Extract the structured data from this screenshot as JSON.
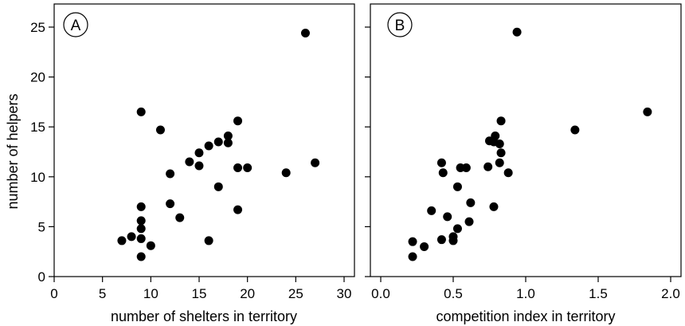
{
  "figure": {
    "shared_ylabel": "number of helpers"
  },
  "chart_data": [
    {
      "type": "scatter",
      "panel_label": "A",
      "title": "",
      "xlabel": "number of shelters in territory",
      "ylabel": "number of helpers",
      "xlim": [
        0,
        30
      ],
      "ylim": [
        0,
        25
      ],
      "xticks": [
        0,
        5,
        10,
        15,
        20,
        25,
        30
      ],
      "xtick_labels": [
        "0",
        "5",
        "10",
        "15",
        "20",
        "25",
        "30"
      ],
      "yticks": [
        0,
        5,
        10,
        15,
        20,
        25
      ],
      "ytick_labels": [
        "0",
        "5",
        "10",
        "15",
        "20",
        "25"
      ],
      "grid": false,
      "marker_color": "#000000",
      "points": [
        {
          "x": 7,
          "y": 3.6
        },
        {
          "x": 8,
          "y": 4.0
        },
        {
          "x": 9,
          "y": 2.0
        },
        {
          "x": 9,
          "y": 3.8
        },
        {
          "x": 9,
          "y": 4.8
        },
        {
          "x": 9,
          "y": 5.6
        },
        {
          "x": 9,
          "y": 7.0
        },
        {
          "x": 9,
          "y": 16.5
        },
        {
          "x": 10,
          "y": 3.1
        },
        {
          "x": 11,
          "y": 14.7
        },
        {
          "x": 12,
          "y": 7.3
        },
        {
          "x": 12,
          "y": 10.3
        },
        {
          "x": 13,
          "y": 5.9
        },
        {
          "x": 14,
          "y": 11.5
        },
        {
          "x": 15,
          "y": 11.1
        },
        {
          "x": 15,
          "y": 12.4
        },
        {
          "x": 16,
          "y": 3.6
        },
        {
          "x": 16,
          "y": 13.1
        },
        {
          "x": 17,
          "y": 9.0
        },
        {
          "x": 17,
          "y": 13.5
        },
        {
          "x": 18,
          "y": 13.4
        },
        {
          "x": 18,
          "y": 14.1
        },
        {
          "x": 19,
          "y": 6.7
        },
        {
          "x": 19,
          "y": 10.9
        },
        {
          "x": 19,
          "y": 15.6
        },
        {
          "x": 20,
          "y": 10.9
        },
        {
          "x": 24,
          "y": 10.4
        },
        {
          "x": 26,
          "y": 24.4
        },
        {
          "x": 27,
          "y": 11.4
        }
      ]
    },
    {
      "type": "scatter",
      "panel_label": "B",
      "title": "",
      "xlabel": "competition index in territory",
      "ylabel": "",
      "xlim": [
        0.0,
        2.0
      ],
      "ylim": [
        0,
        25
      ],
      "xticks": [
        0.0,
        0.5,
        1.0,
        1.5,
        2.0
      ],
      "xtick_labels": [
        "0.0",
        "0.5",
        "1.0",
        "1.5",
        "2.0"
      ],
      "yticks": [
        0,
        5,
        10,
        15,
        20,
        25
      ],
      "ytick_labels": [],
      "grid": false,
      "marker_color": "#000000",
      "points": [
        {
          "x": 0.22,
          "y": 2.0
        },
        {
          "x": 0.22,
          "y": 3.5
        },
        {
          "x": 0.3,
          "y": 3.0
        },
        {
          "x": 0.35,
          "y": 6.6
        },
        {
          "x": 0.42,
          "y": 3.7
        },
        {
          "x": 0.42,
          "y": 11.4
        },
        {
          "x": 0.43,
          "y": 10.4
        },
        {
          "x": 0.46,
          "y": 6.0
        },
        {
          "x": 0.5,
          "y": 3.6
        },
        {
          "x": 0.5,
          "y": 4.0
        },
        {
          "x": 0.53,
          "y": 4.8
        },
        {
          "x": 0.53,
          "y": 9.0
        },
        {
          "x": 0.55,
          "y": 10.9
        },
        {
          "x": 0.59,
          "y": 10.9
        },
        {
          "x": 0.61,
          "y": 5.5
        },
        {
          "x": 0.62,
          "y": 7.4
        },
        {
          "x": 0.74,
          "y": 11.0
        },
        {
          "x": 0.75,
          "y": 13.6
        },
        {
          "x": 0.78,
          "y": 13.5
        },
        {
          "x": 0.78,
          "y": 7.0
        },
        {
          "x": 0.79,
          "y": 14.1
        },
        {
          "x": 0.82,
          "y": 11.4
        },
        {
          "x": 0.82,
          "y": 13.3
        },
        {
          "x": 0.83,
          "y": 12.4
        },
        {
          "x": 0.83,
          "y": 15.6
        },
        {
          "x": 0.88,
          "y": 10.4
        },
        {
          "x": 0.94,
          "y": 24.5
        },
        {
          "x": 1.34,
          "y": 14.7
        },
        {
          "x": 1.84,
          "y": 16.5
        }
      ]
    }
  ]
}
